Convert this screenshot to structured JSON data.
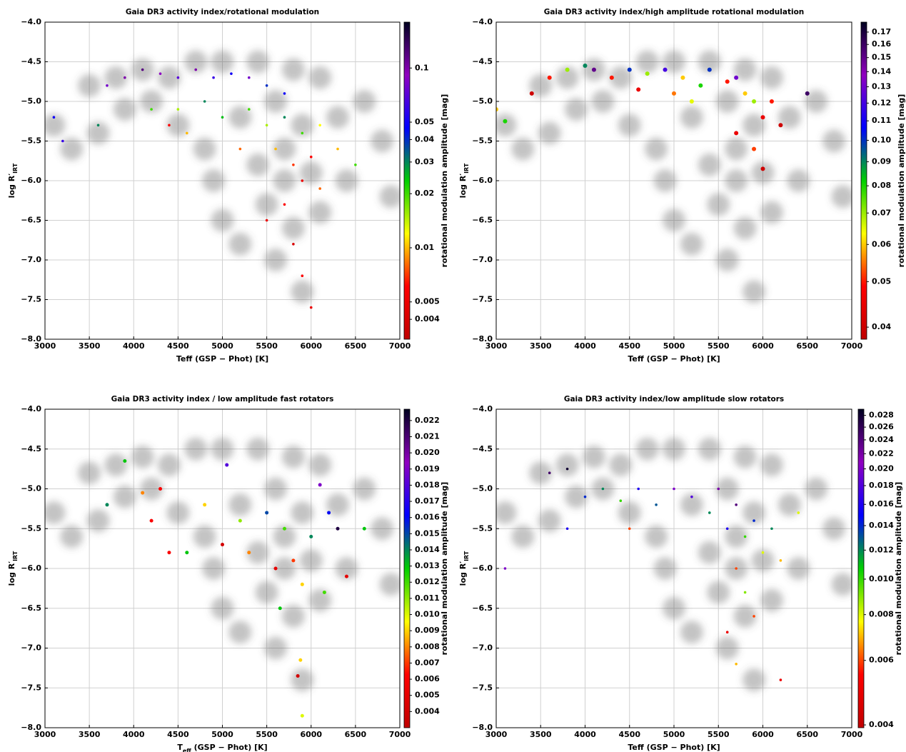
{
  "chart_data": [
    {
      "type": "scatter",
      "title": "Gaia DR3 activity index/rotational modulation",
      "x_label": "Teff (GSP − Phot) [K]",
      "y_label": [
        "log R′",
        "IRT"
      ],
      "colorbar_label": "rotational modulation amplitude [mag]",
      "xlim": [
        3000,
        7000
      ],
      "ylim": [
        -8,
        -4
      ],
      "xticks": [
        3000,
        3500,
        4000,
        4500,
        5000,
        5500,
        6000,
        6500,
        7000
      ],
      "yticks": [
        {
          "value": -8,
          "label": "−8.0"
        },
        {
          "value": -7.5,
          "label": "−7.5"
        },
        {
          "value": -7,
          "label": "−7.0"
        },
        {
          "value": -6.5,
          "label": "−6.5"
        },
        {
          "value": -6,
          "label": "−6.0"
        },
        {
          "value": -5.5,
          "label": "−5.5"
        },
        {
          "value": -5,
          "label": "−5.0"
        },
        {
          "value": -4.5,
          "label": "−4.5"
        },
        {
          "value": -4,
          "label": "−4.0"
        }
      ],
      "grid": true,
      "colorbar_log": true,
      "clim": [
        0.0031,
        0.18
      ],
      "cticks": [
        0.004,
        0.005,
        0.01,
        0.02,
        0.03,
        0.04,
        0.05,
        0.1
      ],
      "colormap": [
        "#c00000",
        "#ff0000",
        "#ffff00",
        "#00d000",
        "#0000ff",
        "#9000c0",
        "#000020"
      ],
      "background": {
        "color": "#555555",
        "x": [
          3100,
          3300,
          3500,
          3600,
          3800,
          3900,
          4100,
          4200,
          4400,
          4500,
          4700,
          4800,
          4900,
          5000,
          5000,
          5200,
          5200,
          5400,
          5400,
          5500,
          5600,
          5600,
          5700,
          5700,
          5800,
          5800,
          5900,
          5900,
          6000,
          6100,
          6100,
          6300,
          6400,
          6600,
          6800,
          6900
        ],
        "y": [
          -5.3,
          -5.6,
          -4.8,
          -5.4,
          -4.7,
          -5.1,
          -4.6,
          -5.0,
          -4.7,
          -5.3,
          -4.5,
          -5.6,
          -6.0,
          -4.5,
          -6.5,
          -5.2,
          -6.8,
          -4.5,
          -5.8,
          -6.3,
          -5.0,
          -7.0,
          -5.6,
          -6.0,
          -4.6,
          -6.6,
          -5.3,
          -7.4,
          -5.9,
          -4.7,
          -6.4,
          -5.2,
          -6.0,
          -5.0,
          -5.5,
          -6.2
        ]
      },
      "points": {
        "x": [
          3700,
          3900,
          4100,
          4300,
          4500,
          4700,
          4900,
          5100,
          5300,
          5500,
          5700,
          4200,
          4500,
          4800,
          5000,
          5300,
          5500,
          5700,
          5900,
          6100,
          4600,
          5200,
          5600,
          5800,
          6000,
          5900,
          5700,
          6100,
          5500,
          5800,
          5900,
          6000,
          4400,
          3600,
          3100,
          3200,
          6300,
          6500
        ],
        "y": [
          -4.8,
          -4.7,
          -4.6,
          -4.65,
          -4.7,
          -4.6,
          -4.7,
          -4.65,
          -4.7,
          -4.8,
          -4.9,
          -5.1,
          -5.1,
          -5.0,
          -5.2,
          -5.1,
          -5.3,
          -5.2,
          -5.4,
          -5.3,
          -5.4,
          -5.6,
          -5.6,
          -5.8,
          -5.7,
          -6.0,
          -6.3,
          -6.1,
          -6.5,
          -6.8,
          -7.2,
          -7.6,
          -5.3,
          -5.3,
          -5.2,
          -5.5,
          -5.6,
          -5.8
        ],
        "c": [
          0.08,
          0.1,
          0.12,
          0.09,
          0.07,
          0.1,
          0.06,
          0.05,
          0.08,
          0.04,
          0.05,
          0.02,
          0.015,
          0.03,
          0.025,
          0.02,
          0.015,
          0.03,
          0.02,
          0.012,
          0.01,
          0.008,
          0.01,
          0.007,
          0.006,
          0.005,
          0.006,
          0.008,
          0.005,
          0.004,
          0.006,
          0.005,
          0.006,
          0.03,
          0.05,
          0.06,
          0.01,
          0.02
        ]
      }
    },
    {
      "type": "scatter",
      "title": "Gaia DR3 activity index/high amplitude rotational modulation",
      "x_label": "Teff (GSP − Phot) [K]",
      "y_label": [
        "log R′",
        "IRT"
      ],
      "colorbar_label": "rotational modulation amplitude [mag]",
      "xlim": [
        3000,
        7000
      ],
      "ylim": [
        -8,
        -4
      ],
      "xticks": [
        3000,
        3500,
        4000,
        4500,
        5000,
        5500,
        6000,
        6500,
        7000
      ],
      "yticks": [
        {
          "value": -8,
          "label": "−8.0"
        },
        {
          "value": -7.5,
          "label": "−7.5"
        },
        {
          "value": -7,
          "label": "−7.0"
        },
        {
          "value": -6.5,
          "label": "−6.5"
        },
        {
          "value": -6,
          "label": "−6.0"
        },
        {
          "value": -5.5,
          "label": "−5.5"
        },
        {
          "value": -5,
          "label": "−5.0"
        },
        {
          "value": -4.5,
          "label": "−4.5"
        },
        {
          "value": -4,
          "label": "−4.0"
        }
      ],
      "grid": true,
      "colorbar_log": true,
      "clim": [
        0.0377,
        0.1785
      ],
      "cticks": [
        0.04,
        0.05,
        0.06,
        0.07,
        0.08,
        0.09,
        {
          "value": 0.1,
          "label": "0.10"
        },
        0.11,
        0.12,
        0.13,
        0.14,
        0.15,
        0.16,
        0.17
      ],
      "colormap": [
        "#c00000",
        "#ff0000",
        "#ffff00",
        "#00d000",
        "#0000ff",
        "#9000c0",
        "#000020"
      ],
      "background": {
        "color": "#555555",
        "x": [
          3100,
          3300,
          3500,
          3600,
          3800,
          3900,
          4100,
          4200,
          4400,
          4500,
          4700,
          4800,
          4900,
          5000,
          5000,
          5200,
          5200,
          5400,
          5400,
          5500,
          5600,
          5600,
          5700,
          5700,
          5800,
          5800,
          5900,
          5900,
          6000,
          6100,
          6100,
          6300,
          6400,
          6600,
          6800,
          6900
        ],
        "y": [
          -5.3,
          -5.6,
          -4.8,
          -5.4,
          -4.7,
          -5.1,
          -4.6,
          -5.0,
          -4.7,
          -5.3,
          -4.5,
          -5.6,
          -6.0,
          -4.5,
          -6.5,
          -5.2,
          -6.8,
          -4.5,
          -5.8,
          -6.3,
          -5.0,
          -7.0,
          -5.6,
          -6.0,
          -4.6,
          -6.6,
          -5.3,
          -7.4,
          -5.9,
          -4.7,
          -6.4,
          -5.2,
          -6.0,
          -5.0,
          -5.5,
          -6.2
        ]
      },
      "points": {
        "x": [
          3000,
          3100,
          3400,
          3600,
          3800,
          4000,
          4100,
          4300,
          4500,
          4700,
          4900,
          5100,
          5300,
          5400,
          5600,
          5700,
          5800,
          5900,
          6000,
          6100,
          6200,
          5700,
          5900,
          6000,
          6500,
          5000,
          5200,
          4600
        ],
        "y": [
          -5.1,
          -5.25,
          -4.9,
          -4.7,
          -4.6,
          -4.55,
          -4.6,
          -4.7,
          -4.6,
          -4.65,
          -4.6,
          -4.7,
          -4.8,
          -4.6,
          -4.75,
          -4.7,
          -4.9,
          -5.0,
          -5.2,
          -5.0,
          -5.3,
          -5.4,
          -5.6,
          -5.85,
          -4.9,
          -4.9,
          -5.0,
          -4.85
        ],
        "c": [
          0.06,
          0.08,
          0.04,
          0.05,
          0.07,
          0.09,
          0.15,
          0.05,
          0.1,
          0.07,
          0.12,
          0.06,
          0.08,
          0.1,
          0.05,
          0.13,
          0.06,
          0.07,
          0.045,
          0.05,
          0.04,
          0.045,
          0.052,
          0.04,
          0.16,
          0.055,
          0.065,
          0.045
        ]
      }
    },
    {
      "type": "scatter",
      "title": "Gaia DR3 activity index / low amplitude fast rotators",
      "x_label": [
        "T",
        "eff",
        " (GSP − Phot) [K]"
      ],
      "y_label": [
        "log R′",
        "IRT"
      ],
      "colorbar_label": "rotational modulation amplitude [mag]",
      "xlim": [
        3000,
        7000
      ],
      "ylim": [
        -8,
        -4
      ],
      "xticks": [
        3000,
        3500,
        4000,
        4500,
        5000,
        5500,
        6000,
        6500,
        7000
      ],
      "yticks": [
        {
          "value": -8,
          "label": "−8.0"
        },
        {
          "value": -7.5,
          "label": "−7.5"
        },
        {
          "value": -7,
          "label": "−7.0"
        },
        {
          "value": -6.5,
          "label": "−6.5"
        },
        {
          "value": -6,
          "label": "−6.0"
        },
        {
          "value": -5.5,
          "label": "−5.5"
        },
        {
          "value": -5,
          "label": "−5.0"
        },
        {
          "value": -4.5,
          "label": "−4.5"
        },
        {
          "value": -4,
          "label": "−4.0"
        }
      ],
      "grid": true,
      "colorbar_log": false,
      "clim": [
        0.003,
        0.0227
      ],
      "cticks": [
        0.004,
        0.005,
        0.006,
        0.007,
        0.008,
        0.009,
        {
          "value": 0.01,
          "label": "0.010"
        },
        0.011,
        0.012,
        0.013,
        0.014,
        0.015,
        0.016,
        0.017,
        0.018,
        0.019,
        {
          "value": 0.02,
          "label": "0.020"
        },
        0.021,
        0.022
      ],
      "colormap": [
        "#c00000",
        "#ff0000",
        "#ffff00",
        "#00d000",
        "#0000ff",
        "#9000c0",
        "#000020"
      ],
      "background": {
        "color": "#555555",
        "x": [
          3100,
          3300,
          3500,
          3600,
          3800,
          3900,
          4100,
          4200,
          4400,
          4500,
          4700,
          4800,
          4900,
          5000,
          5000,
          5200,
          5200,
          5400,
          5400,
          5500,
          5600,
          5600,
          5700,
          5700,
          5800,
          5800,
          5900,
          5900,
          6000,
          6100,
          6100,
          6300,
          6400,
          6600,
          6800,
          6900
        ],
        "y": [
          -5.3,
          -5.6,
          -4.8,
          -5.4,
          -4.7,
          -5.1,
          -4.6,
          -5.0,
          -4.7,
          -5.3,
          -4.5,
          -5.6,
          -6.0,
          -4.5,
          -6.5,
          -5.2,
          -6.8,
          -4.5,
          -5.8,
          -6.3,
          -5.0,
          -7.0,
          -5.6,
          -6.0,
          -4.6,
          -6.6,
          -5.3,
          -7.4,
          -5.9,
          -4.7,
          -6.4,
          -5.2,
          -6.0,
          -5.0,
          -5.5,
          -6.2
        ]
      },
      "points": {
        "x": [
          3700,
          3900,
          4100,
          4200,
          4400,
          4600,
          4800,
          5000,
          5200,
          5300,
          5500,
          5600,
          5700,
          5800,
          5900,
          6000,
          6100,
          6200,
          6300,
          6400,
          6600,
          5850,
          5880,
          5900,
          5650,
          6150,
          4300,
          5050
        ],
        "y": [
          -5.2,
          -4.65,
          -5.05,
          -5.4,
          -5.8,
          -5.8,
          -5.2,
          -5.7,
          -5.4,
          -5.8,
          -5.3,
          -6.0,
          -5.5,
          -5.9,
          -6.2,
          -5.6,
          -4.95,
          -5.3,
          -5.5,
          -6.1,
          -5.5,
          -7.35,
          -7.15,
          -7.85,
          -6.5,
          -6.3,
          -5.0,
          -4.7
        ],
        "c": [
          0.014,
          0.013,
          0.008,
          0.006,
          0.006,
          0.013,
          0.009,
          0.004,
          0.011,
          0.008,
          0.015,
          0.005,
          0.012,
          0.007,
          0.009,
          0.014,
          0.019,
          0.016,
          0.022,
          0.005,
          0.013,
          0.004,
          0.009,
          0.01,
          0.013,
          0.012,
          0.006,
          0.018
        ]
      }
    },
    {
      "type": "scatter",
      "title": "Gaia DR3 activity index/low amplitude slow rotators",
      "x_label": "Teff (GSP − Phot) [K]",
      "y_label": [
        "log R′",
        "IRT"
      ],
      "colorbar_label": "rotational modulation amplitude [mag]",
      "xlim": [
        3000,
        7000
      ],
      "ylim": [
        -8,
        -4
      ],
      "xticks": [
        3000,
        3500,
        4000,
        4500,
        5000,
        5500,
        6000,
        6500,
        7000
      ],
      "yticks": [
        {
          "value": -8,
          "label": "−8.0"
        },
        {
          "value": -7.5,
          "label": "−7.5"
        },
        {
          "value": -7,
          "label": "−7.0"
        },
        {
          "value": -6.5,
          "label": "−6.5"
        },
        {
          "value": -6,
          "label": "−6.0"
        },
        {
          "value": -5.5,
          "label": "−5.5"
        },
        {
          "value": -5,
          "label": "−5.0"
        },
        {
          "value": -4.5,
          "label": "−4.5"
        },
        {
          "value": -4,
          "label": "−4.0"
        }
      ],
      "grid": true,
      "colorbar_log": true,
      "clim": [
        0.00393,
        0.0291
      ],
      "cticks": [
        0.004,
        0.006,
        0.008,
        {
          "value": 0.01,
          "label": "0.010"
        },
        0.012,
        0.014,
        0.016,
        0.018,
        {
          "value": 0.02,
          "label": "0.020"
        },
        0.022,
        0.024,
        0.026,
        0.028
      ],
      "colormap": [
        "#c00000",
        "#ff0000",
        "#ffff00",
        "#00d000",
        "#0000ff",
        "#9000c0",
        "#000020"
      ],
      "background": {
        "color": "#555555",
        "x": [
          3100,
          3300,
          3500,
          3600,
          3800,
          3900,
          4100,
          4200,
          4400,
          4500,
          4700,
          4800,
          4900,
          5000,
          5000,
          5200,
          5200,
          5400,
          5400,
          5500,
          5600,
          5600,
          5700,
          5700,
          5800,
          5800,
          5900,
          5900,
          6000,
          6100,
          6100,
          6300,
          6400,
          6600,
          6800,
          6900
        ],
        "y": [
          -5.3,
          -5.6,
          -4.8,
          -5.4,
          -4.7,
          -5.1,
          -4.6,
          -5.0,
          -4.7,
          -5.3,
          -4.5,
          -5.6,
          -6.0,
          -4.5,
          -6.5,
          -5.2,
          -6.8,
          -4.5,
          -5.8,
          -6.3,
          -5.0,
          -7.0,
          -5.6,
          -6.0,
          -4.6,
          -6.6,
          -5.3,
          -7.4,
          -5.9,
          -4.7,
          -6.4,
          -5.2,
          -6.0,
          -5.0,
          -5.5,
          -6.2
        ]
      },
      "points": {
        "x": [
          3100,
          3600,
          3800,
          4000,
          4200,
          4400,
          4600,
          4800,
          5000,
          5200,
          5400,
          5500,
          5600,
          5700,
          5800,
          5900,
          6000,
          6100,
          6200,
          5700,
          5800,
          5900,
          5600,
          5700,
          6200,
          4500,
          3800,
          6400
        ],
        "y": [
          -6.0,
          -4.8,
          -4.75,
          -5.1,
          -5.0,
          -5.15,
          -5.0,
          -5.2,
          -5.0,
          -5.1,
          -5.3,
          -5.0,
          -5.5,
          -5.2,
          -5.6,
          -5.4,
          -5.8,
          -5.5,
          -5.9,
          -6.0,
          -6.3,
          -6.6,
          -6.8,
          -7.2,
          -7.4,
          -5.5,
          -5.5,
          -5.3
        ],
        "c": [
          0.02,
          0.025,
          0.028,
          0.014,
          0.012,
          0.01,
          0.016,
          0.013,
          0.02,
          0.018,
          0.012,
          0.022,
          0.016,
          0.024,
          0.01,
          0.014,
          0.008,
          0.012,
          0.007,
          0.006,
          0.009,
          0.006,
          0.005,
          0.007,
          0.005,
          0.006,
          0.016,
          0.008
        ]
      }
    }
  ]
}
